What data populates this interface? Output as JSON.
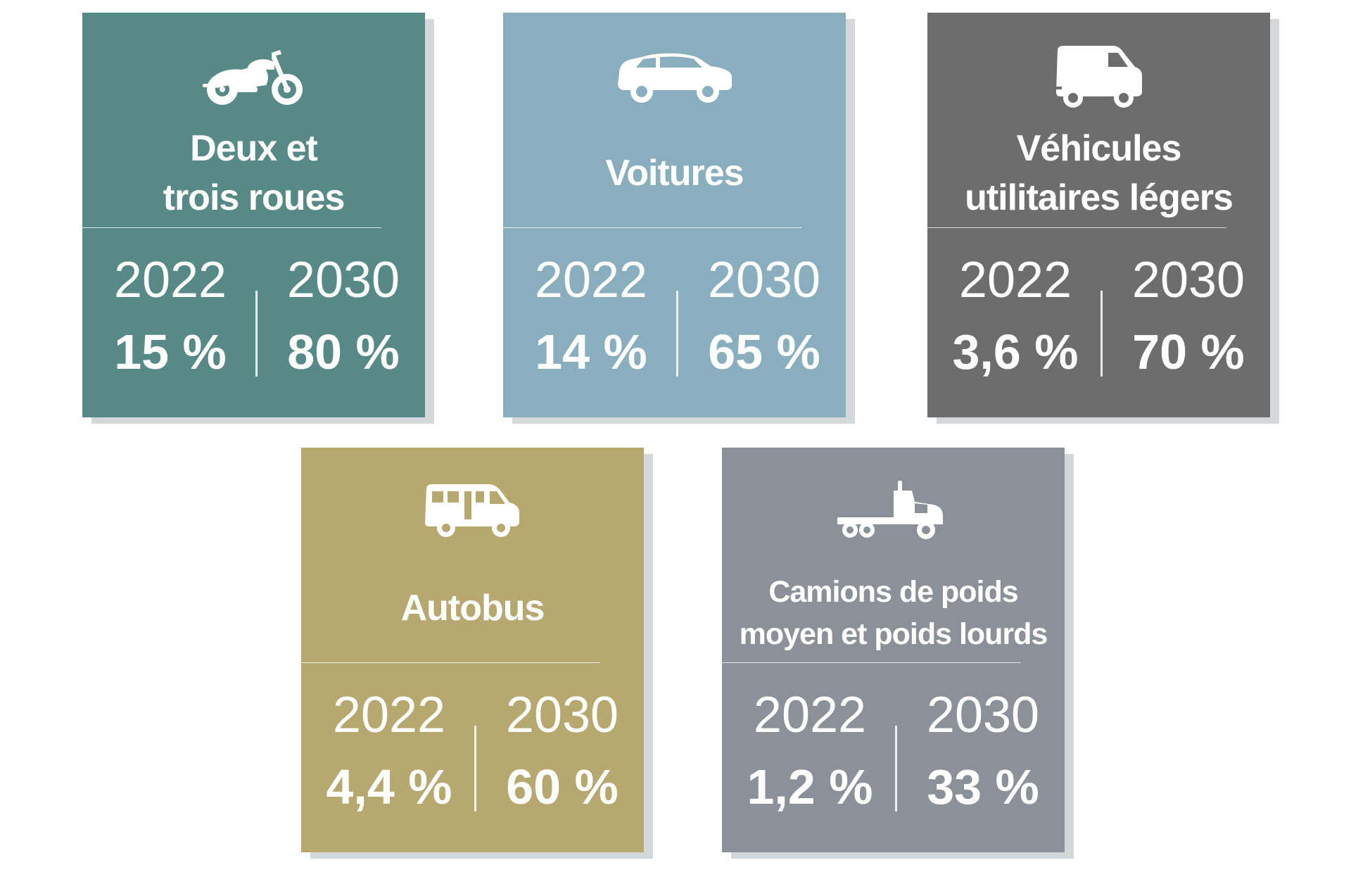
{
  "cards": [
    {
      "icon": "motorcycle-icon",
      "color": "#578a86",
      "title_lines": [
        "Deux et",
        "trois roues"
      ],
      "year_a": "2022",
      "value_a": "15 %",
      "year_b": "2030",
      "value_b": "80 %"
    },
    {
      "icon": "car-icon",
      "color": "#89aebd",
      "title_lines": [
        "Voitures"
      ],
      "year_a": "2022",
      "value_a": "14 %",
      "year_b": "2030",
      "value_b": "65 %"
    },
    {
      "icon": "van-icon",
      "color": "#6d6d6d",
      "title_lines": [
        "Véhicules",
        "utilitaires légers"
      ],
      "year_a": "2022",
      "value_a": "3,6 %",
      "year_b": "2030",
      "value_b": "70 %"
    },
    {
      "icon": "bus-icon",
      "color": "#b7a870",
      "title_lines": [
        "Autobus"
      ],
      "year_a": "2022",
      "value_a": "4,4 %",
      "year_b": "2030",
      "value_b": "60 %"
    },
    {
      "icon": "truck-icon",
      "color": "#8a9199",
      "title_lines": [
        "Camions de poids",
        "moyen et poids lourds"
      ],
      "year_a": "2022",
      "value_a": "1,2 %",
      "year_b": "2030",
      "value_b": "33 %"
    }
  ]
}
